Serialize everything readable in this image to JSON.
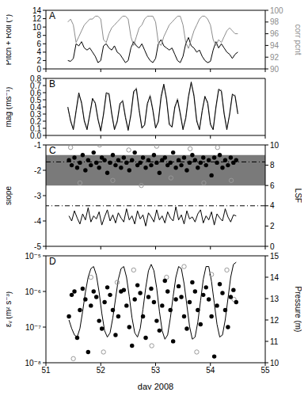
{
  "chart_data": [
    {
      "type": "line",
      "title": "A",
      "ylabel": "Pitch + Roll (°)",
      "y2label": "corr pcnt",
      "tick_labels": "y",
      "xlim": [
        51,
        55
      ],
      "xticks": [
        51,
        52,
        53,
        54,
        55
      ],
      "ylim": [
        0,
        14
      ],
      "yticks": [
        0,
        2,
        4,
        6,
        8,
        10,
        12,
        14
      ],
      "y2lim": [
        90,
        100
      ],
      "y2ticks": [
        90,
        92,
        94,
        96,
        98,
        100
      ],
      "x": [
        51.4,
        51.45,
        51.5,
        51.55,
        51.6,
        51.65,
        51.7,
        51.75,
        51.8,
        51.85,
        51.9,
        51.95,
        52,
        52.05,
        52.1,
        52.15,
        52.2,
        52.25,
        52.3,
        52.35,
        52.4,
        52.45,
        52.5,
        52.55,
        52.6,
        52.65,
        52.7,
        52.75,
        52.8,
        52.85,
        52.9,
        52.95,
        53,
        53.05,
        53.1,
        53.15,
        53.2,
        53.25,
        53.3,
        53.35,
        53.4,
        53.45,
        53.5,
        53.55,
        53.6,
        53.65,
        53.7,
        53.75,
        53.8,
        53.85,
        53.9,
        53.95,
        54,
        54.05,
        54.1,
        54.15,
        54.2,
        54.25,
        54.3,
        54.35,
        54.4,
        54.45,
        54.5
      ],
      "series": [
        {
          "type": "line",
          "color": "#000000",
          "axis": "y",
          "values": [
            2.0,
            1.8,
            2.5,
            6.0,
            5.5,
            6.5,
            5.0,
            4.5,
            5.0,
            4.0,
            3.0,
            1.5,
            2.0,
            5.5,
            6.0,
            5.0,
            4.5,
            5.5,
            4.0,
            3.5,
            2.5,
            1.5,
            2.0,
            5.0,
            6.5,
            5.5,
            5.0,
            6.0,
            4.5,
            3.0,
            2.0,
            1.5,
            2.5,
            6.0,
            7.0,
            5.5,
            5.0,
            4.5,
            5.0,
            3.5,
            2.0,
            1.5,
            3.0,
            6.0,
            7.5,
            5.5,
            5.0,
            4.0,
            4.5,
            3.0,
            2.0,
            1.5,
            1.8,
            4.5,
            6.5,
            5.0,
            6.0,
            5.0,
            4.0,
            3.5,
            2.5,
            3.5,
            4.0
          ]
        },
        {
          "type": "line",
          "color": "#8c8c8c",
          "axis": "y2",
          "values": [
            98.0,
            98.5,
            97.5,
            94.5,
            95.5,
            96.5,
            97.5,
            98.0,
            98.5,
            98.5,
            99.0,
            99.0,
            98.5,
            95.0,
            94.5,
            96.0,
            97.0,
            97.5,
            98.0,
            98.5,
            99.0,
            99.0,
            98.5,
            95.5,
            94.0,
            95.5,
            97.0,
            97.5,
            98.5,
            99.0,
            99.0,
            99.0,
            98.0,
            94.5,
            94.0,
            95.5,
            96.5,
            97.5,
            98.0,
            98.5,
            99.0,
            99.0,
            97.5,
            94.5,
            93.5,
            95.0,
            96.5,
            97.5,
            98.5,
            99.0,
            99.0,
            98.5,
            97.5,
            95.0,
            94.0,
            95.0,
            94.5,
            95.5,
            96.5,
            97.0,
            96.5,
            96.0,
            96.0
          ]
        }
      ]
    },
    {
      "type": "line",
      "title": "B",
      "ylabel": "mag (ms⁻¹)",
      "tick_labels": "y",
      "xlim": [
        51,
        55
      ],
      "xticks": [
        51,
        52,
        53,
        54,
        55
      ],
      "ylim": [
        0,
        0.8
      ],
      "yticks": [
        {
          "value": 0,
          "label": "0.0"
        },
        0.1,
        0.2,
        0.3,
        0.4,
        0.5,
        0.6,
        0.7,
        0.8
      ],
      "x": [
        51.4,
        51.45,
        51.5,
        51.55,
        51.6,
        51.65,
        51.7,
        51.75,
        51.8,
        51.85,
        51.9,
        51.95,
        52,
        52.05,
        52.1,
        52.15,
        52.2,
        52.25,
        52.3,
        52.35,
        52.4,
        52.45,
        52.5,
        52.55,
        52.6,
        52.65,
        52.7,
        52.75,
        52.8,
        52.85,
        52.9,
        52.95,
        53,
        53.05,
        53.1,
        53.15,
        53.2,
        53.25,
        53.3,
        53.35,
        53.4,
        53.45,
        53.5,
        53.55,
        53.6,
        53.65,
        53.7,
        53.75,
        53.8,
        53.85,
        53.9,
        53.95,
        54,
        54.05,
        54.1,
        54.15,
        54.2,
        54.25,
        54.3,
        54.35,
        54.4,
        54.45,
        54.5
      ],
      "series": [
        {
          "type": "line",
          "color": "#999999",
          "axis": "y",
          "values": [
            0.38,
            0.22,
            0.1,
            0.32,
            0.56,
            0.48,
            0.22,
            0.1,
            0.28,
            0.5,
            0.47,
            0.24,
            0.08,
            0.28,
            0.56,
            0.6,
            0.33,
            0.1,
            0.18,
            0.42,
            0.5,
            0.28,
            0.09,
            0.27,
            0.58,
            0.67,
            0.38,
            0.12,
            0.14,
            0.42,
            0.57,
            0.38,
            0.12,
            0.18,
            0.5,
            0.7,
            0.53,
            0.18,
            0.11,
            0.37,
            0.52,
            0.33,
            0.1,
            0.22,
            0.52,
            0.73,
            0.58,
            0.23,
            0.09,
            0.32,
            0.53,
            0.48,
            0.18,
            0.09,
            0.37,
            0.62,
            0.64,
            0.33,
            0.1,
            0.28,
            0.55,
            0.57,
            0.32
          ]
        },
        {
          "type": "line",
          "color": "#000000",
          "axis": "y",
          "values": [
            0.4,
            0.2,
            0.08,
            0.35,
            0.6,
            0.45,
            0.2,
            0.08,
            0.3,
            0.52,
            0.45,
            0.22,
            0.06,
            0.3,
            0.6,
            0.58,
            0.3,
            0.08,
            0.2,
            0.45,
            0.48,
            0.25,
            0.07,
            0.3,
            0.62,
            0.65,
            0.35,
            0.1,
            0.15,
            0.45,
            0.55,
            0.35,
            0.1,
            0.2,
            0.55,
            0.72,
            0.5,
            0.15,
            0.12,
            0.4,
            0.5,
            0.3,
            0.08,
            0.25,
            0.55,
            0.75,
            0.55,
            0.2,
            0.08,
            0.35,
            0.55,
            0.45,
            0.15,
            0.08,
            0.4,
            0.65,
            0.62,
            0.3,
            0.08,
            0.3,
            0.58,
            0.55,
            0.3
          ]
        }
      ]
    },
    {
      "type": "scatter",
      "title": "C",
      "ylabel": "slope",
      "y2label": "LSF",
      "tick_labels": "y",
      "xlim": [
        51,
        55
      ],
      "xticks": [
        51,
        52,
        53,
        54,
        55
      ],
      "ylim": [
        -5,
        -1
      ],
      "yticks": [
        -5,
        -4,
        -3,
        -2,
        -1
      ],
      "y2lim": [
        0,
        10
      ],
      "y2ticks": [
        0,
        2,
        4,
        6,
        8,
        10
      ],
      "bands": [
        {
          "values": [
            -2.6,
            -1.4
          ],
          "axis": "y",
          "color": "#7a7a7a"
        }
      ],
      "reference_lines": [
        {
          "value": -1.67,
          "axis": "y",
          "color": "#000000",
          "line_style": "dashdot"
        },
        {
          "value": 4,
          "axis": "y2",
          "color": "#000000",
          "line_style": "dashdot"
        }
      ],
      "x": [
        51.42,
        51.47,
        51.52,
        51.57,
        51.62,
        51.67,
        51.72,
        51.77,
        51.82,
        51.87,
        51.92,
        51.97,
        52.02,
        52.07,
        52.12,
        52.17,
        52.22,
        52.27,
        52.32,
        52.37,
        52.42,
        52.47,
        52.52,
        52.57,
        52.62,
        52.67,
        52.72,
        52.77,
        52.82,
        52.87,
        52.92,
        52.97,
        53.02,
        53.07,
        53.12,
        53.17,
        53.22,
        53.27,
        53.32,
        53.37,
        53.42,
        53.47,
        53.52,
        53.57,
        53.62,
        53.67,
        53.72,
        53.77,
        53.82,
        53.87,
        53.92,
        53.97,
        54.02,
        54.07,
        54.12,
        54.17,
        54.22,
        54.27,
        54.32,
        54.37,
        54.42,
        54.47
      ],
      "series": [
        {
          "type": "line",
          "color": "#000000",
          "axis": "y2",
          "values": [
            3.0,
            2.5,
            3.5,
            2.8,
            2.2,
            3.2,
            2.6,
            3.8,
            2.4,
            3.0,
            2.7,
            3.4,
            2.1,
            2.9,
            3.6,
            2.5,
            3.1,
            2.3,
            3.3,
            2.8,
            2.4,
            3.7,
            2.6,
            3.0,
            2.2,
            3.5,
            2.7,
            3.1,
            2.0,
            3.3,
            2.9,
            2.4,
            3.6,
            2.6,
            3.0,
            2.3,
            3.4,
            2.8,
            2.5,
            3.9,
            2.6,
            3.1,
            2.2,
            3.5,
            2.7,
            2.9,
            2.4,
            3.2,
            3.6,
            2.3,
            3.0,
            2.6,
            3.4,
            2.1,
            3.2,
            2.8,
            2.5,
            3.7,
            2.9,
            2.4,
            3.1,
            3.0
          ]
        },
        {
          "type": "scatter",
          "color": "#999999",
          "axis": "y",
          "marker": "open_circle",
          "x": [
            51.45,
            51.62,
            51.98,
            52.22,
            52.51,
            52.74,
            53.02,
            53.28,
            53.63,
            53.88,
            54.13,
            54.38
          ],
          "values": [
            -1.1,
            -2.5,
            -1.0,
            -2.4,
            -1.2,
            -2.6,
            -1.05,
            -2.3,
            -1.15,
            -2.5,
            -1.1,
            -2.4
          ]
        },
        {
          "type": "scatter",
          "color": "#000000",
          "axis": "y",
          "marker": "circle",
          "values": [
            -1.6,
            -1.8,
            -1.5,
            -1.9,
            -1.7,
            -1.4,
            -2.0,
            -1.6,
            -1.8,
            -1.3,
            -1.7,
            -1.9,
            -1.5,
            -1.6,
            -2.1,
            -1.7,
            -1.4,
            -1.8,
            -1.6,
            -1.9,
            -1.5,
            -1.7,
            -2.0,
            -1.6,
            -1.3,
            -1.8,
            -1.7,
            -1.5,
            -1.9,
            -1.6,
            -1.8,
            -1.4,
            -1.7,
            -2.1,
            -1.6,
            -1.5,
            -1.8,
            -1.7,
            -1.3,
            -1.9,
            -1.6,
            -1.8,
            -1.5,
            -2.0,
            -1.7,
            -1.4,
            -1.6,
            -1.9,
            -1.7,
            -1.5,
            -1.8,
            -1.6,
            -2.2,
            -1.5,
            -1.7,
            -1.4,
            -1.9,
            -1.6,
            -1.8,
            -1.5,
            -1.7,
            -1.6
          ]
        }
      ]
    },
    {
      "type": "scatter",
      "title": "D",
      "xlabel": "day 2008",
      "ylabel": "εᵥ (m² s⁻³)",
      "y2label": "Pressure (m)",
      "log": "y",
      "xlim": [
        51,
        55
      ],
      "xticks": [
        51,
        52,
        53,
        54,
        55
      ],
      "ylim": [
        1e-08,
        1e-05
      ],
      "yticks": [
        {
          "value": 1e-08,
          "label": "10⁻⁸"
        },
        {
          "value": 1e-07,
          "label": "10⁻⁷"
        },
        {
          "value": 1e-06,
          "label": "10⁻⁶"
        },
        {
          "value": 1e-05,
          "label": "10⁻⁵"
        }
      ],
      "y2lim": [
        10,
        15
      ],
      "y2ticks": [
        10,
        11,
        12,
        13,
        14,
        15
      ],
      "x": [
        51.42,
        51.47,
        51.52,
        51.57,
        51.62,
        51.67,
        51.72,
        51.77,
        51.82,
        51.87,
        51.92,
        51.97,
        52.02,
        52.07,
        52.12,
        52.17,
        52.22,
        52.27,
        52.32,
        52.37,
        52.42,
        52.47,
        52.52,
        52.57,
        52.62,
        52.67,
        52.72,
        52.77,
        52.82,
        52.87,
        52.92,
        52.97,
        53.02,
        53.07,
        53.12,
        53.17,
        53.22,
        53.27,
        53.32,
        53.37,
        53.42,
        53.47,
        53.52,
        53.57,
        53.62,
        53.67,
        53.72,
        53.77,
        53.82,
        53.87,
        53.92,
        53.97,
        54.02,
        54.07,
        54.12,
        54.17,
        54.22,
        54.27,
        54.32,
        54.37,
        54.42,
        54.47
      ],
      "series": [
        {
          "type": "line",
          "color": "#000000",
          "axis": "y2",
          "values": [
            12.0,
            11.6,
            11.3,
            11.2,
            11.6,
            12.4,
            13.3,
            14.0,
            14.4,
            14.5,
            14.1,
            13.3,
            12.3,
            11.5,
            11.2,
            11.4,
            12.1,
            13.0,
            13.9,
            14.4,
            14.5,
            14.0,
            13.1,
            12.1,
            11.4,
            11.2,
            11.6,
            12.5,
            13.5,
            14.3,
            14.6,
            14.3,
            13.5,
            12.4,
            11.5,
            11.1,
            11.3,
            12.1,
            13.1,
            14.0,
            14.5,
            14.4,
            13.7,
            12.7,
            11.7,
            11.1,
            11.2,
            11.9,
            12.9,
            13.9,
            14.5,
            14.5,
            13.8,
            12.8,
            11.8,
            11.2,
            11.3,
            12.0,
            13.0,
            14.0,
            14.6,
            14.7
          ]
        },
        {
          "type": "scatter",
          "color": "#999999",
          "axis": "y",
          "marker": "open_circle",
          "x": [
            51.5,
            51.82,
            52.05,
            52.3,
            52.6,
            52.93,
            53.2,
            53.52,
            53.75,
            54.02,
            54.3,
            54.43
          ],
          "values": [
            1.3e-08,
            2.5e-06,
            2e-08,
            1.8e-06,
            4e-06,
            3e-08,
            2.5e-06,
            5e-06,
            2e-08,
            3e-06,
            4e-06,
            6e-07
          ]
        },
        {
          "type": "scatter",
          "color": "#000000",
          "axis": "y",
          "marker": "circle",
          "values": [
            2e-07,
            8e-07,
            1e-06,
            5e-08,
            3e-07,
            1.2e-06,
            6e-07,
            2e-08,
            4e-07,
            1e-06,
            7e-07,
            1.5e-07,
            9e-08,
            5e-07,
            1.3e-06,
            8e-07,
            3e-07,
            6e-08,
            2e-07,
            1e-06,
            1.1e-06,
            4e-07,
            1e-07,
            3e-08,
            6e-07,
            1.5e-06,
            9e-07,
            2e-07,
            5e-08,
            7e-07,
            1.2e-06,
            5e-07,
            1.5e-07,
            8e-08,
            4e-07,
            2e-06,
            1e-06,
            3e-07,
            4e-08,
            6e-07,
            1.4e-06,
            7e-07,
            2e-07,
            9e-08,
            5e-07,
            1.8e-06,
            1e-06,
            3e-07,
            1.2e-07,
            8e-07,
            1.3e-06,
            6e-07,
            2e-07,
            1.5e-08,
            4e-07,
            1.6e-06,
            9e-07,
            3e-07,
            1e-07,
            7e-07,
            1.1e-06,
            5e-07
          ]
        }
      ]
    }
  ]
}
